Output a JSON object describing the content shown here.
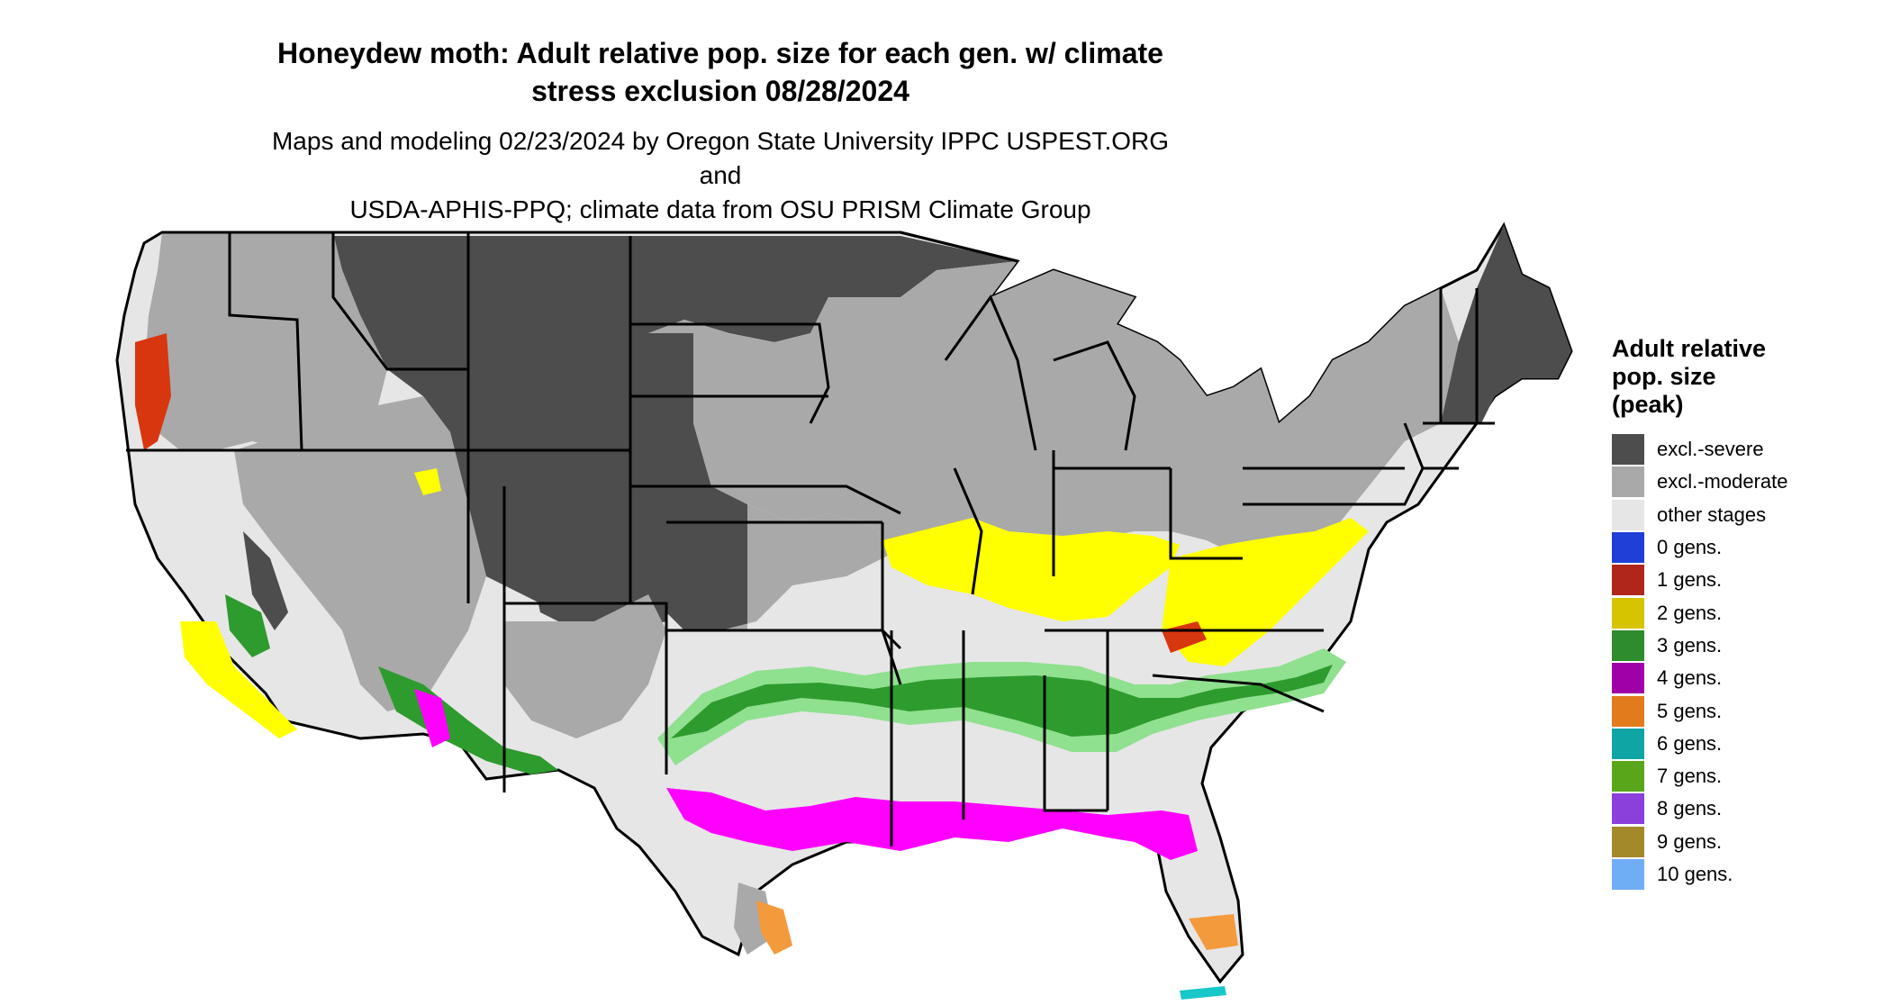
{
  "title": {
    "line1": "Honeydew moth: Adult relative pop. size for each gen. w/ climate",
    "line2": "stress exclusion 08/28/2024"
  },
  "subtitle": {
    "line1": "Maps and modeling 02/23/2024 by Oregon State University IPPC USPEST.ORG and",
    "line2": "USDA-APHIS-PPQ; climate data from OSU PRISM Climate Group"
  },
  "legend": {
    "title_lines": [
      "Adult relative",
      "pop. size",
      "(peak)"
    ],
    "items": [
      {
        "label": "excl.-severe",
        "color": "#4d4d4d"
      },
      {
        "label": "excl.-moderate",
        "color": "#a9a9a9"
      },
      {
        "label": "other stages",
        "color": "#e6e6e6"
      },
      {
        "label": "0 gens.",
        "color": "#1f3fd6"
      },
      {
        "label": "1 gens.",
        "color": "#b0261b"
      },
      {
        "label": "2 gens.",
        "color": "#d7c400"
      },
      {
        "label": "3 gens.",
        "color": "#2e8b2e"
      },
      {
        "label": "4 gens.",
        "color": "#a000a8"
      },
      {
        "label": "5 gens.",
        "color": "#e27b1c"
      },
      {
        "label": "6 gens.",
        "color": "#0fa5a5"
      },
      {
        "label": "7 gens.",
        "color": "#5aa61a"
      },
      {
        "label": "8 gens.",
        "color": "#8b40db"
      },
      {
        "label": "9 gens.",
        "color": "#a4892a"
      },
      {
        "label": "10 gens.",
        "color": "#6fadf5"
      }
    ]
  },
  "map_colors": {
    "severe": "#4d4d4d",
    "moderate": "#a9a9a9",
    "other": "#e6e6e6",
    "two_gens": "#ffff00",
    "three_gens": "#2e9b2e",
    "three_gens_light": "#8fe08f",
    "four_gens": "#ff00ff",
    "five_gens": "#f39a3c",
    "one_gens": "#d8360f",
    "six_gens": "#18c8c8",
    "state_border": "#000000"
  }
}
